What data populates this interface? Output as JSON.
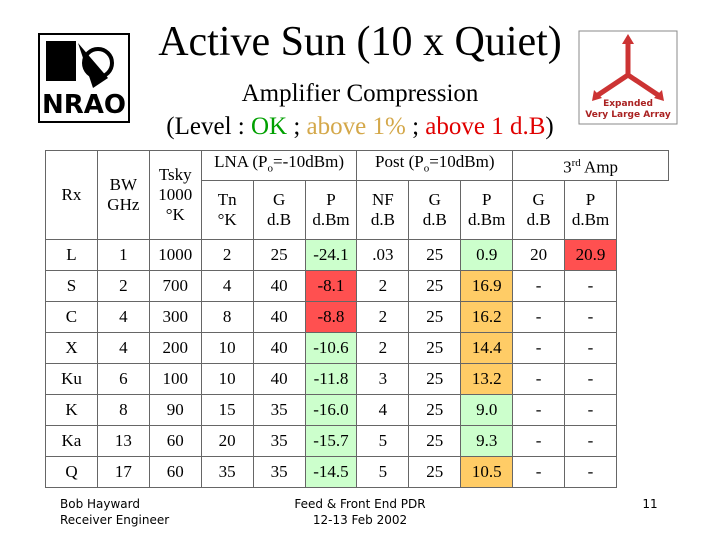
{
  "header": {
    "title": "Active Sun (10 x Quiet)",
    "subtitle": "Amplifier Compression",
    "legend": {
      "prefix": "(Level :",
      "separator": ";",
      "items": [
        {
          "label": "OK",
          "color": "#00a000"
        },
        {
          "label": "above 1%",
          "color": "#d4a84a"
        },
        {
          "label": "above 1 d.B",
          "color": "#e00000"
        }
      ],
      "suffix": ")"
    }
  },
  "logos": {
    "left": "NRAO",
    "right": [
      "Expanded",
      "Very Large Array"
    ]
  },
  "table": {
    "fixed_headers": [
      [
        "Rx"
      ],
      [
        "BW",
        "GHz"
      ],
      [
        "Tsky",
        "1000",
        "°K"
      ]
    ],
    "groups": [
      {
        "parts": [
          "LNA (P",
          "o",
          "=-10dBm)"
        ],
        "script": "sub"
      },
      {
        "parts": [
          "Post (P",
          "o",
          "=10dBm)"
        ],
        "script": "sub"
      },
      {
        "parts": [
          "3",
          "rd",
          " Amp"
        ],
        "script": "sup"
      }
    ],
    "subheaders": [
      [
        "Tn",
        "°K"
      ],
      [
        "G",
        "d.B"
      ],
      [
        "P",
        "d.Bm"
      ],
      [
        "NF",
        "d.B"
      ],
      [
        "G",
        "d.B"
      ],
      [
        "P",
        "d.Bm"
      ],
      [
        "G",
        "d.B"
      ],
      [
        "P",
        "d.Bm"
      ]
    ],
    "rows": [
      [
        "L",
        "1",
        "1000",
        "2",
        "25",
        "-24.1",
        ".03",
        "25",
        "0.9",
        "20",
        "20.9"
      ],
      [
        "S",
        "2",
        "700",
        "4",
        "40",
        "-8.1",
        "2",
        "25",
        "16.9",
        "-",
        "-"
      ],
      [
        "C",
        "4",
        "300",
        "8",
        "40",
        "-8.8",
        "2",
        "25",
        "16.2",
        "-",
        "-"
      ],
      [
        "X",
        "4",
        "200",
        "10",
        "40",
        "-10.6",
        "2",
        "25",
        "14.4",
        "-",
        "-"
      ],
      [
        "Ku",
        "6",
        "100",
        "10",
        "40",
        "-11.8",
        "3",
        "25",
        "13.2",
        "-",
        "-"
      ],
      [
        "K",
        "8",
        "90",
        "15",
        "35",
        "-16.0",
        "4",
        "25",
        "9.0",
        "-",
        "-"
      ],
      [
        "Ka",
        "13",
        "60",
        "20",
        "35",
        "-15.7",
        "5",
        "25",
        "9.3",
        "-",
        "-"
      ],
      [
        "Q",
        "17",
        "60",
        "35",
        "35",
        "-14.5",
        "5",
        "25",
        "10.5",
        "-",
        "-"
      ]
    ],
    "cell_colors": [
      [
        null,
        null,
        null,
        null,
        null,
        "#ccffcc",
        null,
        null,
        "#ccffcc",
        null,
        "#ff5050"
      ],
      [
        null,
        null,
        null,
        null,
        null,
        "#ff5050",
        null,
        null,
        "#ffcc66",
        null,
        null
      ],
      [
        null,
        null,
        null,
        null,
        null,
        "#ff5050",
        null,
        null,
        "#ffcc66",
        null,
        null
      ],
      [
        null,
        null,
        null,
        null,
        null,
        "#ccffcc",
        null,
        null,
        "#ffcc66",
        null,
        null
      ],
      [
        null,
        null,
        null,
        null,
        null,
        "#ccffcc",
        null,
        null,
        "#ffcc66",
        null,
        null
      ],
      [
        null,
        null,
        null,
        null,
        null,
        "#ccffcc",
        null,
        null,
        "#ccffcc",
        null,
        null
      ],
      [
        null,
        null,
        null,
        null,
        null,
        "#ccffcc",
        null,
        null,
        "#ccffcc",
        null,
        null
      ],
      [
        null,
        null,
        null,
        null,
        null,
        "#ccffcc",
        null,
        null,
        "#ffcc66",
        null,
        null
      ]
    ]
  },
  "footer": {
    "author": [
      "Bob Hayward",
      "Receiver Engineer"
    ],
    "event": [
      "Feed & Front End PDR",
      "12-13 Feb 2002"
    ],
    "page": "11"
  }
}
